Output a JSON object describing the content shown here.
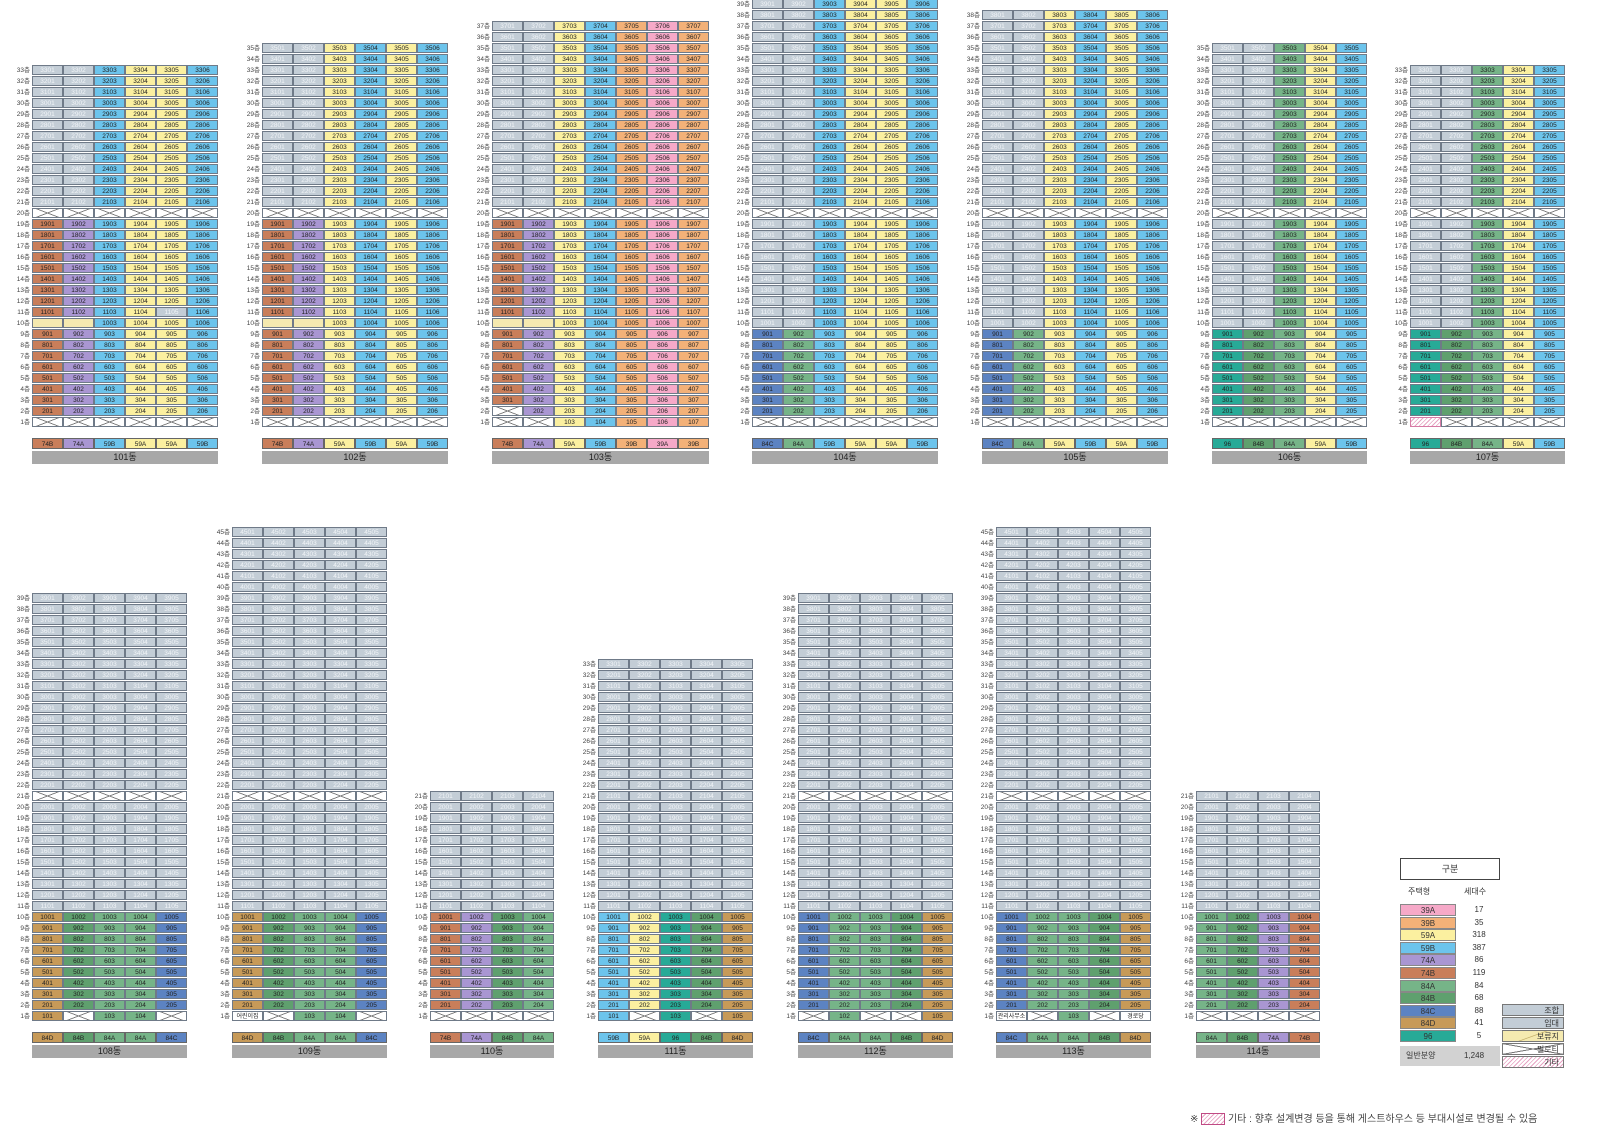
{
  "colors": {
    "39A": "#f6a9c8",
    "39B": "#f3b178",
    "59A": "#fbf0a0",
    "59B": "#6cc4ec",
    "74A": "#a996d2",
    "74B": "#c97e5a",
    "84A": "#76b488",
    "84B": "#5fa06e",
    "84C": "#5c83c2",
    "84D": "#c79a58",
    "96": "#27aa97",
    "josap": "#c3cdd6",
    "imdae": "#c3cdd6",
    "boryu": "#f5eab0",
    "pilloti": "#ffffff",
    "gita": "#f2c7db"
  },
  "buildings": [
    {
      "name": "101동",
      "x": 32,
      "baseY": 428,
      "maxFloor": 33,
      "cols": 6,
      "cw": 31,
      "types": [
        "74B",
        "74A",
        "59B",
        "59A",
        "59A",
        "59B"
      ],
      "over": {
        "33": {
          "1": "josap",
          "2": "josap"
        },
        "11": {
          "5": "josap"
        },
        "10": {
          "1": "boryu",
          "2": "boryu"
        },
        "2": {},
        "1": {
          "1": "xfloor",
          "2": "xfloor",
          "3": "xfloor",
          "4": "xfloor",
          "5": "xfloor",
          "6": "xfloor"
        }
      },
      "plain": [
        1
      ],
      "pilloti": [
        20
      ],
      "josapFloors": []
    },
    {
      "name": "102동",
      "x": 262,
      "baseY": 428,
      "maxFloor": 35,
      "cols": 6,
      "cw": 31,
      "types": [
        "74B",
        "74A",
        "59A",
        "59B",
        "59A",
        "59B"
      ],
      "over": {
        "10": {
          "1": "boryu",
          "2": "boryu"
        },
        "1": {
          "1": "xfloor",
          "2": "xfloor",
          "3": "xfloor",
          "4": "xfloor",
          "5": "xfloor",
          "6": "xfloor"
        }
      },
      "plain": [
        1
      ],
      "pilloti": [
        20
      ],
      "josapFloors": []
    },
    {
      "name": "103동",
      "x": 492,
      "baseY": 428,
      "maxFloor": 37,
      "cols": 7,
      "cw": 31,
      "types": [
        "74B",
        "74A",
        "59A",
        "59B",
        "39B",
        "39A",
        "39B"
      ],
      "over": {
        "10": {
          "1": "boryu",
          "2": "boryu"
        },
        "2": {
          "1": "xfloor"
        },
        "1": {
          "1": "xfloor",
          "2": "xfloor"
        }
      },
      "plain": [],
      "pilloti": [
        20
      ],
      "josapFloors": []
    },
    {
      "name": "104동",
      "x": 752,
      "baseY": 428,
      "maxFloor": 39,
      "cols": 6,
      "cw": 31,
      "types": [
        "84C",
        "84A",
        "59B",
        "59A",
        "59A",
        "59B"
      ],
      "over": {
        "1": {
          "1": "xfloor",
          "2": "xfloor",
          "3": "xfloor",
          "4": "xfloor",
          "5": "xfloor",
          "6": "xfloor"
        }
      },
      "plain": [],
      "pilloti": [
        20
      ],
      "josapFloors": []
    },
    {
      "name": "105동",
      "x": 982,
      "baseY": 428,
      "maxFloor": 38,
      "cols": 6,
      "cw": 31,
      "types": [
        "84C",
        "84A",
        "59A",
        "59B",
        "59A",
        "59B"
      ],
      "over": {
        "1": {
          "1": "xfloor",
          "2": "xfloor",
          "3": "xfloor",
          "4": "xfloor",
          "5": "xfloor",
          "6": "xfloor"
        }
      },
      "plain": [],
      "pilloti": [
        20
      ],
      "josapFloors": []
    },
    {
      "name": "106동",
      "x": 1212,
      "baseY": 428,
      "maxFloor": 35,
      "cols": 5,
      "cw": 31,
      "types": [
        "96",
        "84B",
        "84A",
        "59A",
        "59B"
      ],
      "over": {
        "1": {
          "1": "xfloor",
          "2": "xfloor",
          "3": "xfloor",
          "4": "xfloor",
          "5": "xfloor"
        }
      },
      "plain": [],
      "pilloti": [
        20
      ],
      "josapFloors": []
    },
    {
      "name": "107동",
      "x": 1410,
      "baseY": 428,
      "maxFloor": 33,
      "cols": 5,
      "cw": 31,
      "types": [
        "96",
        "84B",
        "84A",
        "59A",
        "59B"
      ],
      "over": {
        "1": {
          "1": "gita",
          "2": "xfloor",
          "3": "xfloor",
          "4": "xfloor",
          "5": "xfloor"
        }
      },
      "plain": [],
      "pilloti": [
        20
      ],
      "josapFloors": []
    },
    {
      "name": "108동",
      "x": 32,
      "baseY": 1022,
      "maxFloor": 39,
      "cols": 5,
      "cw": 31,
      "types": [
        "84D",
        "84B",
        "84A",
        "84A",
        "84C"
      ],
      "over": {
        "1": {
          "1": "plain",
          "2": "xfloor",
          "3": "plain",
          "4": "plain",
          "5": "xfloor"
        }
      },
      "plain": [],
      "pilloti": [
        21
      ],
      "josapFloors": []
    },
    {
      "name": "109동",
      "x": 232,
      "baseY": 1022,
      "maxFloor": 45,
      "cols": 5,
      "cw": 31,
      "types": [
        "84D",
        "84B",
        "84A",
        "84A",
        "84C"
      ],
      "over": {
        "1": {
          "1": "plain",
          "2": "xfloor",
          "3": "plain",
          "4": "plain",
          "5": "xfloor"
        }
      },
      "plain": [],
      "pilloti": [
        21
      ],
      "josapFloors": []
    },
    {
      "name": "110동",
      "x": 430,
      "baseY": 1022,
      "maxFloor": 21,
      "cols": 4,
      "cw": 31,
      "types": [
        "74B",
        "74A",
        "84B",
        "84A"
      ],
      "over": {
        "1": {
          "1": "xfloor",
          "2": "xfloor",
          "3": "xfloor",
          "4": "xfloor"
        }
      },
      "plain": [],
      "pilloti": [],
      "josapFloors": []
    },
    {
      "name": "111동",
      "x": 598,
      "baseY": 1022,
      "maxFloor": 33,
      "cols": 5,
      "cw": 31,
      "types": [
        "59B",
        "59A",
        "96",
        "84B",
        "84D"
      ],
      "over": {
        "1": {
          "1": "plain",
          "2": "xfloor",
          "3": "plain",
          "4": "xfloor",
          "5": "plain"
        }
      },
      "plain": [],
      "pilloti": [],
      "josapFloors": []
    },
    {
      "name": "112동",
      "x": 798,
      "baseY": 1022,
      "maxFloor": 39,
      "cols": 5,
      "cw": 31,
      "types": [
        "84C",
        "84A",
        "84A",
        "84B",
        "84D"
      ],
      "over": {
        "1": {
          "1": "xfloor",
          "2": "plain",
          "3": "xfloor",
          "4": "xfloor",
          "5": "plain"
        }
      },
      "plain": [],
      "pilloti": [
        21
      ],
      "josapFloors": []
    },
    {
      "name": "113동",
      "x": 996,
      "baseY": 1022,
      "maxFloor": 45,
      "cols": 5,
      "cw": 31,
      "types": [
        "84C",
        "84A",
        "84A",
        "84B",
        "84D"
      ],
      "over": {
        "1": {
          "1": "plain",
          "2": "xfloor",
          "3": "plain",
          "4": "xfloor",
          "5": "plain"
        }
      },
      "plain": [],
      "pilloti": [
        21
      ],
      "josapFloors": []
    },
    {
      "name": "114동",
      "x": 1196,
      "baseY": 1022,
      "maxFloor": 21,
      "cols": 4,
      "cw": 31,
      "types": [
        "84A",
        "84B",
        "74A",
        "74B"
      ],
      "over": {
        "1": {
          "1": "xfloor",
          "2": "xfloor",
          "3": "xfloor",
          "4": "xfloor"
        }
      },
      "plain": [],
      "pilloti": [],
      "josapFloors": []
    }
  ],
  "specialUnits": {
    "109동": {
      "1": {
        "1": "어린이집"
      }
    },
    "113동": {
      "1": {
        "1": "관리사무소",
        "5": "경로당"
      }
    }
  },
  "floorSuffix": "층",
  "legend": {
    "title": "구분",
    "col1": "주택형",
    "col2": "세대수",
    "rows": [
      {
        "type": "39A",
        "count": "17"
      },
      {
        "type": "39B",
        "count": "35"
      },
      {
        "type": "59A",
        "count": "318"
      },
      {
        "type": "59B",
        "count": "387"
      },
      {
        "type": "74A",
        "count": "86"
      },
      {
        "type": "74B",
        "count": "119"
      },
      {
        "type": "84A",
        "count": "84"
      },
      {
        "type": "84B",
        "count": "68"
      },
      {
        "type": "84C",
        "count": "88"
      },
      {
        "type": "84D",
        "count": "41"
      },
      {
        "type": "96",
        "count": "5"
      }
    ],
    "total_label": "일반분양",
    "total_value": "1,248"
  },
  "kinds": [
    {
      "key": "josap",
      "label": "조합"
    },
    {
      "key": "imdae",
      "label": "임대"
    },
    {
      "key": "boryu",
      "label": "보류지"
    },
    {
      "key": "pilloti",
      "label": "필로티"
    },
    {
      "key": "gita",
      "label": "기타"
    }
  ],
  "note_prefix": "※",
  "note": "기타 : 향후 설계변경 등을 통해 게스트하우스 등 부대시설로 변경될 수 있음"
}
